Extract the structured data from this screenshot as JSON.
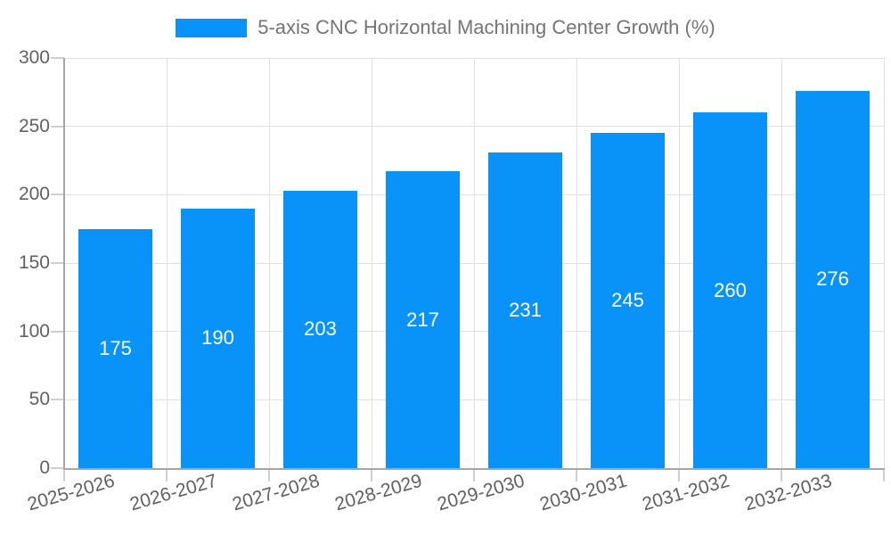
{
  "legend": {
    "label": "5-axis CNC Horizontal Machining Center Growth (%)"
  },
  "chart_data": {
    "type": "bar",
    "title": "5-axis CNC Horizontal Machining Center Growth (%)",
    "categories": [
      "2025-2026",
      "2026-2027",
      "2027-2028",
      "2028-2029",
      "2029-2030",
      "2030-2031",
      "2031-2032",
      "2032-2033"
    ],
    "values": [
      175,
      190,
      203,
      217,
      231,
      245,
      260,
      276
    ],
    "xlabel": "",
    "ylabel": "",
    "ylim": [
      0,
      300
    ],
    "yticks": [
      0,
      50,
      100,
      150,
      200,
      250,
      300
    ],
    "grid": true,
    "legend_position": "top",
    "bar_color": "#0992f7",
    "value_label_color": "#ffffff"
  },
  "colors": {
    "bar": "#0992f7",
    "grid": "#e0e0e0",
    "axis": "#a6a6a6",
    "tick": "#cfcfcf",
    "tick_text": "#616161",
    "legend_text": "#757575",
    "background": "#ffffff"
  }
}
